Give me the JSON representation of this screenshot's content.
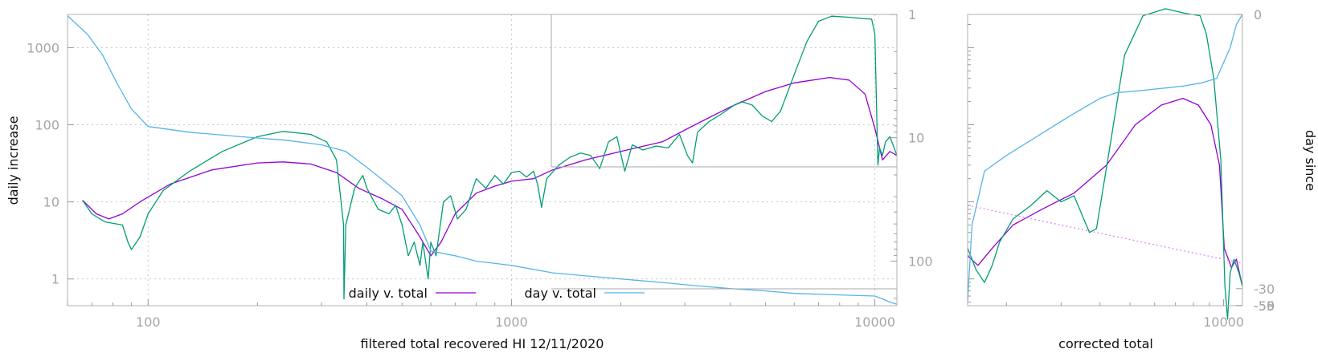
{
  "chart_data": [
    {
      "type": "line",
      "xlabel": "filtered total recovered HI 12/11/2020",
      "ylabel": "daily increase",
      "y2label": "",
      "x_scale": "log",
      "y_scale": "log",
      "y2_scale": "log-reversed",
      "xlim": [
        60,
        11500
      ],
      "ylim": [
        0.45,
        2700
      ],
      "y2lim": [
        1,
        230
      ],
      "x_ticks": [
        "100",
        "1000",
        "10000"
      ],
      "y_ticks": [
        "1",
        "10",
        "100",
        "1000"
      ],
      "y2_ticks": [
        "1",
        "10",
        "100"
      ],
      "grid": true,
      "legend_position": "bottom-center",
      "series": [
        {
          "name": "daily v. total",
          "color": "#9400d3",
          "axis": "y",
          "points": [
            [
              66,
              10.5
            ],
            [
              72,
              7
            ],
            [
              78,
              6
            ],
            [
              85,
              7
            ],
            [
              95,
              10
            ],
            [
              115,
              17
            ],
            [
              150,
              26
            ],
            [
              200,
              32
            ],
            [
              235,
              33
            ],
            [
              280,
              31
            ],
            [
              330,
              24
            ],
            [
              380,
              15
            ],
            [
              440,
              11
            ],
            [
              500,
              8
            ],
            [
              560,
              3.5
            ],
            [
              600,
              2
            ],
            [
              640,
              3
            ],
            [
              700,
              7
            ],
            [
              800,
              13
            ],
            [
              900,
              16
            ],
            [
              1000,
              18.5
            ],
            [
              1150,
              20
            ],
            [
              1300,
              26
            ],
            [
              1600,
              35
            ],
            [
              2000,
              45
            ],
            [
              2600,
              60
            ],
            [
              3200,
              100
            ],
            [
              4000,
              170
            ],
            [
              5000,
              270
            ],
            [
              6000,
              350
            ],
            [
              7500,
              410
            ],
            [
              8500,
              380
            ],
            [
              9400,
              250
            ],
            [
              10000,
              90
            ],
            [
              10500,
              35
            ],
            [
              11000,
              45
            ],
            [
              11500,
              40
            ]
          ]
        },
        {
          "name": "",
          "color": "#009e73",
          "axis": "y",
          "points": [
            [
              66,
              10.5
            ],
            [
              70,
              7
            ],
            [
              76,
              5.5
            ],
            [
              85,
              5
            ],
            [
              88,
              3
            ],
            [
              90,
              2.4
            ],
            [
              95,
              3.5
            ],
            [
              100,
              7
            ],
            [
              110,
              14
            ],
            [
              130,
              25
            ],
            [
              160,
              45
            ],
            [
              200,
              70
            ],
            [
              235,
              82
            ],
            [
              280,
              75
            ],
            [
              310,
              60
            ],
            [
              330,
              35
            ],
            [
              345,
              5
            ],
            [
              346,
              0.55
            ],
            [
              350,
              5
            ],
            [
              370,
              15
            ],
            [
              390,
              22
            ],
            [
              400,
              15
            ],
            [
              430,
              8
            ],
            [
              460,
              7
            ],
            [
              480,
              9
            ],
            [
              500,
              5
            ],
            [
              520,
              2
            ],
            [
              540,
              3
            ],
            [
              560,
              1.5
            ],
            [
              570,
              3
            ],
            [
              590,
              1
            ],
            [
              600,
              3
            ],
            [
              620,
              2
            ],
            [
              650,
              10
            ],
            [
              680,
              12
            ],
            [
              710,
              6
            ],
            [
              750,
              8
            ],
            [
              800,
              20
            ],
            [
              850,
              15
            ],
            [
              900,
              22
            ],
            [
              950,
              17
            ],
            [
              1000,
              24
            ],
            [
              1050,
              25
            ],
            [
              1100,
              21
            ],
            [
              1150,
              25
            ],
            [
              1180,
              17
            ],
            [
              1210,
              8.5
            ],
            [
              1250,
              20
            ],
            [
              1350,
              30
            ],
            [
              1450,
              38
            ],
            [
              1550,
              43
            ],
            [
              1650,
              40
            ],
            [
              1750,
              27
            ],
            [
              1850,
              60
            ],
            [
              1950,
              70
            ],
            [
              2050,
              25
            ],
            [
              2150,
              55
            ],
            [
              2300,
              47
            ],
            [
              2500,
              53
            ],
            [
              2700,
              50
            ],
            [
              2900,
              75
            ],
            [
              3050,
              40
            ],
            [
              3150,
              32
            ],
            [
              3250,
              80
            ],
            [
              3500,
              110
            ],
            [
              3800,
              140
            ],
            [
              4100,
              180
            ],
            [
              4300,
              200
            ],
            [
              4600,
              180
            ],
            [
              4900,
              130
            ],
            [
              5200,
              110
            ],
            [
              5500,
              150
            ],
            [
              6000,
              450
            ],
            [
              6500,
              1200
            ],
            [
              7000,
              2200
            ],
            [
              7600,
              2560
            ],
            [
              8500,
              2480
            ],
            [
              9400,
              2380
            ],
            [
              9800,
              2350
            ],
            [
              10000,
              1500
            ],
            [
              10200,
              30
            ],
            [
              10300,
              50
            ],
            [
              10500,
              40
            ],
            [
              10700,
              60
            ],
            [
              11000,
              70
            ],
            [
              11300,
              50
            ],
            [
              11500,
              40
            ]
          ]
        },
        {
          "name": "day v. total",
          "color": "#56b4e9",
          "axis": "y",
          "points": [
            [
              60,
              2600
            ],
            [
              68,
              1500
            ],
            [
              75,
              800
            ],
            [
              82,
              350
            ],
            [
              90,
              160
            ],
            [
              100,
              95
            ],
            [
              130,
              80
            ],
            [
              180,
              70
            ],
            [
              240,
              63
            ],
            [
              300,
              55
            ],
            [
              350,
              45
            ],
            [
              400,
              28
            ],
            [
              450,
              18
            ],
            [
              500,
              12
            ],
            [
              560,
              5
            ],
            [
              600,
              2.3
            ],
            [
              700,
              2
            ],
            [
              800,
              1.7
            ],
            [
              1000,
              1.5
            ],
            [
              1300,
              1.2
            ],
            [
              2000,
              1
            ],
            [
              2600,
              0.9
            ],
            [
              3200,
              0.82
            ],
            [
              4000,
              0.75
            ],
            [
              5000,
              0.7
            ],
            [
              6000,
              0.65
            ],
            [
              8000,
              0.62
            ],
            [
              10000,
              0.6
            ],
            [
              10500,
              0.55
            ],
            [
              11000,
              0.5
            ],
            [
              11500,
              0.47
            ]
          ]
        }
      ]
    },
    {
      "type": "line",
      "xlabel": "corrected total",
      "ylabel": "",
      "y2label": "day since",
      "x_scale": "log",
      "y_scale": "log",
      "xlim": [
        1500,
        11500
      ],
      "ylim": [
        0.45,
        2700
      ],
      "y2lim": [
        -59,
        0
      ],
      "x_ticks": [
        "10000"
      ],
      "y2_ticks": [
        "0",
        "-30",
        "-50",
        "-55",
        "-59"
      ],
      "grid": false,
      "series": [
        {
          "name": "",
          "color": "#9400d3",
          "axis": "y",
          "points": [
            [
              1500,
              2
            ],
            [
              1620,
              1.5
            ],
            [
              1800,
              2.5
            ],
            [
              2100,
              5
            ],
            [
              2600,
              8
            ],
            [
              3300,
              13
            ],
            [
              4200,
              30
            ],
            [
              5200,
              100
            ],
            [
              6300,
              180
            ],
            [
              7400,
              220
            ],
            [
              8300,
              180
            ],
            [
              9100,
              100
            ],
            [
              9700,
              30
            ],
            [
              10050,
              2.5
            ],
            [
              10600,
              1.4
            ],
            [
              11000,
              1.8
            ],
            [
              11500,
              0.8
            ]
          ]
        },
        {
          "name": "",
          "color": "#009e73",
          "axis": "y",
          "points": [
            [
              1500,
              2.5
            ],
            [
              1600,
              1.3
            ],
            [
              1700,
              0.9
            ],
            [
              1800,
              1.5
            ],
            [
              1900,
              3
            ],
            [
              2100,
              6
            ],
            [
              2400,
              9
            ],
            [
              2700,
              14
            ],
            [
              3000,
              10
            ],
            [
              3300,
              12
            ],
            [
              3700,
              4
            ],
            [
              3900,
              4.5
            ],
            [
              4300,
              50
            ],
            [
              4800,
              800
            ],
            [
              5500,
              2600
            ],
            [
              6500,
              3200
            ],
            [
              7500,
              2800
            ],
            [
              8400,
              2600
            ],
            [
              8800,
              1500
            ],
            [
              9300,
              400
            ],
            [
              9800,
              35
            ],
            [
              10100,
              0.8
            ],
            [
              10300,
              0.3
            ],
            [
              10500,
              1.2
            ],
            [
              10800,
              1.8
            ],
            [
              11200,
              1.2
            ],
            [
              11500,
              0.8
            ]
          ]
        },
        {
          "name": "",
          "color": "#56b4e9",
          "axis": "y",
          "points": [
            [
              1500,
              0.5
            ],
            [
              1550,
              5
            ],
            [
              1700,
              25
            ],
            [
              2000,
              40
            ],
            [
              2500,
              70
            ],
            [
              3200,
              130
            ],
            [
              4000,
              220
            ],
            [
              4500,
              260
            ],
            [
              5500,
              280
            ],
            [
              6500,
              300
            ],
            [
              7500,
              320
            ],
            [
              8500,
              350
            ],
            [
              9500,
              400
            ],
            [
              10500,
              1000
            ],
            [
              11000,
              2000
            ],
            [
              11500,
              2700
            ]
          ]
        },
        {
          "name": "",
          "color": "#dd88ff",
          "axis": "y",
          "dashed": true,
          "points": [
            [
              1500,
              9
            ],
            [
              11500,
              1.6
            ]
          ]
        }
      ]
    }
  ]
}
